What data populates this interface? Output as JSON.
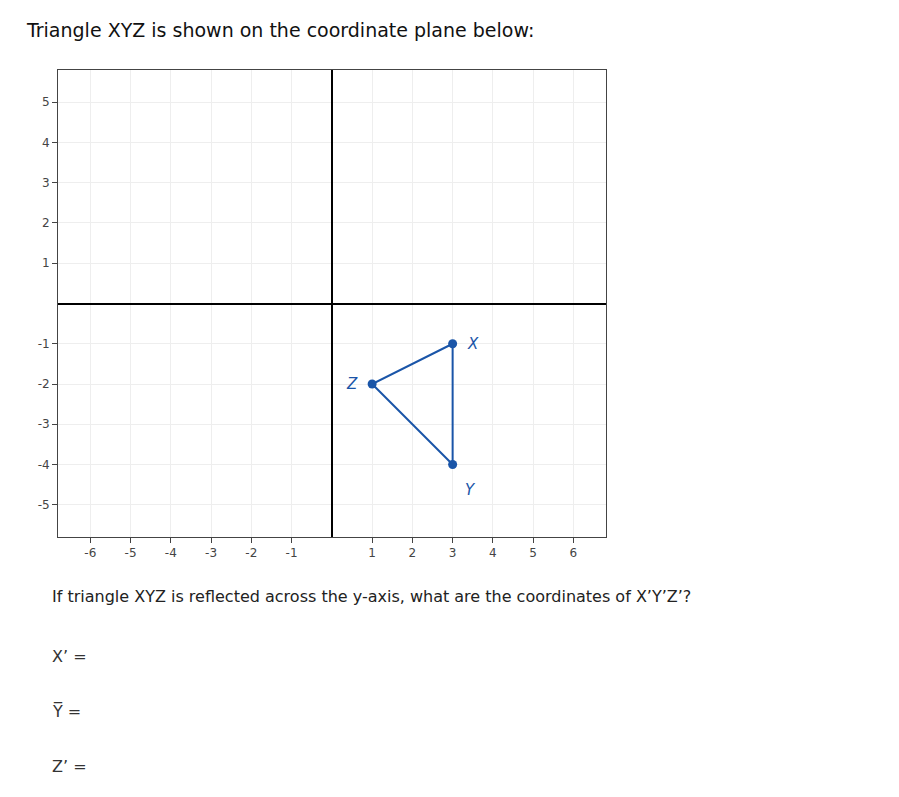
{
  "chart_data": {
    "type": "scatter",
    "title": "Triangle XYZ is shown on the coordinate plane below:",
    "subtitle": "If triangle XYZ is reflected across the y-axis, what are the coordinates of X’Y’Z’?",
    "annotations": [
      "X’ =",
      "Y̅ =",
      "Z’ ="
    ],
    "x": [
      3,
      3,
      1
    ],
    "values": [
      -1,
      -4,
      -2
    ],
    "point_labels": [
      "X",
      "Y",
      "Z"
    ],
    "color": "#1a55a8",
    "marker": "circle",
    "line_style": "solid",
    "xlim": [
      -6.8,
      6.8
    ],
    "ylim": [
      -5.8,
      5.8
    ],
    "xticks": [
      -6,
      -5,
      -4,
      -3,
      -2,
      -1,
      1,
      2,
      3,
      4,
      5,
      6
    ],
    "yticks": [
      -5,
      -4,
      -3,
      -2,
      -1,
      1,
      2,
      3,
      4,
      5
    ],
    "grid": true
  }
}
